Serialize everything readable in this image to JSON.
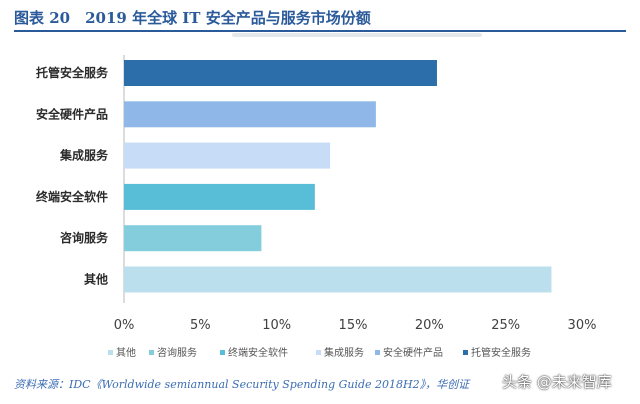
{
  "header": {
    "title": "图表 20　2019 年全球 IT 安全产品与服务市场份额"
  },
  "chart_data": {
    "type": "bar",
    "orientation": "horizontal",
    "categories": [
      "托管安全服务",
      "安全硬件产品",
      "集成服务",
      "终端安全软件",
      "咨询服务",
      "其他"
    ],
    "values": [
      20.5,
      16.5,
      13.5,
      12.5,
      9.0,
      28.0
    ],
    "colors": [
      "#2c6ea9",
      "#8fb8e8",
      "#c7dcf6",
      "#58bed8",
      "#84cddc",
      "#bcdfee"
    ],
    "xlim": [
      0,
      30
    ],
    "xticks": [
      "0%",
      "5%",
      "10%",
      "15%",
      "20%",
      "25%",
      "30%"
    ],
    "grid": false,
    "legend": {
      "placement": "bottom",
      "items": [
        {
          "label": "其他",
          "color": "#bcdfee"
        },
        {
          "label": "咨询服务",
          "color": "#84cddc"
        },
        {
          "label": "终端安全软件",
          "color": "#58bed8"
        },
        {
          "label": "集成服务",
          "color": "#c7dcf6"
        },
        {
          "label": "安全硬件产品",
          "color": "#8fb8e8"
        },
        {
          "label": "托管安全服务",
          "color": "#2c6ea9"
        }
      ]
    }
  },
  "footer": {
    "source": "资料来源：IDC《Worldwide semiannual Security Spending Guide 2018H2》，华创证",
    "watermark": "头条 @未来智库"
  }
}
